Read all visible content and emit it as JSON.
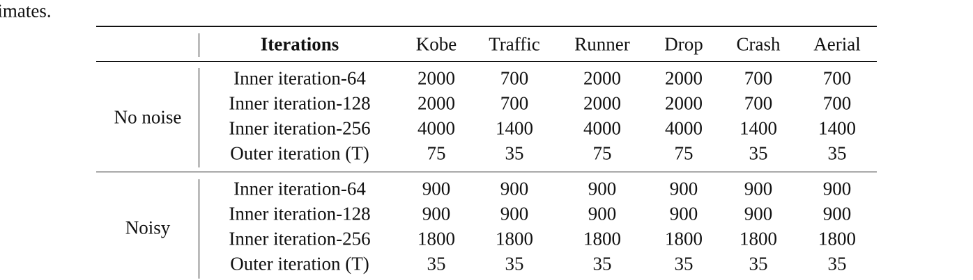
{
  "caption_fragment": "estimates.",
  "table": {
    "header": [
      "Iterations",
      "Kobe",
      "Traffic",
      "Runner",
      "Drop",
      "Crash",
      "Aerial"
    ],
    "groups": [
      {
        "label": "No noise",
        "rows": [
          {
            "label": "Inner iteration-64",
            "values": [
              2000,
              700,
              2000,
              2000,
              700,
              700
            ]
          },
          {
            "label": "Inner iteration-128",
            "values": [
              2000,
              700,
              2000,
              2000,
              700,
              700
            ]
          },
          {
            "label": "Inner iteration-256",
            "values": [
              4000,
              1400,
              4000,
              4000,
              1400,
              1400
            ]
          },
          {
            "label": "Outer iteration (T)",
            "values": [
              75,
              35,
              75,
              75,
              35,
              35
            ]
          }
        ]
      },
      {
        "label": "Noisy",
        "rows": [
          {
            "label": "Inner iteration-64",
            "values": [
              900,
              900,
              900,
              900,
              900,
              900
            ]
          },
          {
            "label": "Inner iteration-128",
            "values": [
              900,
              900,
              900,
              900,
              900,
              900
            ]
          },
          {
            "label": "Inner iteration-256",
            "values": [
              1800,
              1800,
              1800,
              1800,
              1800,
              1800
            ]
          },
          {
            "label": "Outer iteration (T)",
            "values": [
              35,
              35,
              35,
              35,
              35,
              35
            ]
          }
        ]
      }
    ]
  }
}
